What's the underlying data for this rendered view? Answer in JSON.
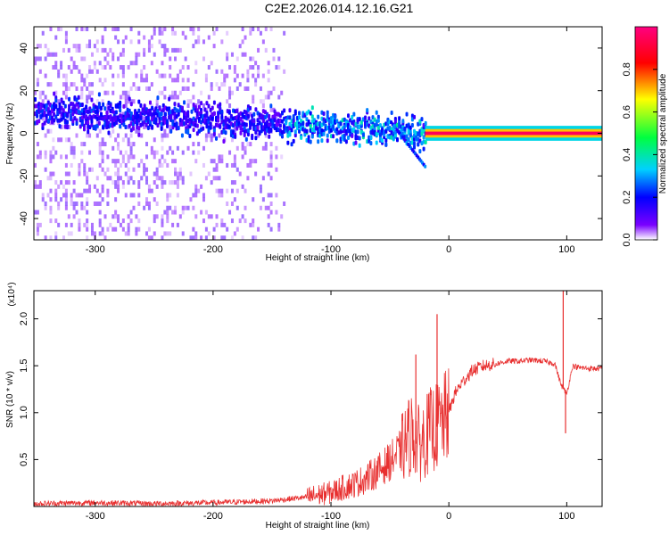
{
  "title": "C2E2.2026.014.12.16.G21",
  "chart_data": [
    {
      "type": "heatmap",
      "xlabel": "Height of straight line (km)",
      "ylabel": "Frequency (Hz)",
      "xlim": [
        -352,
        130
      ],
      "ylim": [
        -50,
        50
      ],
      "xticks": [
        -300,
        -200,
        -100,
        0,
        100
      ],
      "yticks": [
        -40,
        -20,
        0,
        20,
        40
      ],
      "colorbar": {
        "label": "Normalized spectral amplitude",
        "range": [
          0,
          1
        ],
        "ticks": [
          "0.0",
          "0.2",
          "0.4",
          "0.6",
          "0.8"
        ],
        "colormap": [
          "#ffffff",
          "#7a00ff",
          "#0000ff",
          "#00d0ff",
          "#00ff40",
          "#ffff00",
          "#ff0000",
          "#ff0080"
        ]
      },
      "features": [
        {
          "x_range": [
            -352,
            -140
          ],
          "y_range": [
            -50,
            50
          ],
          "amplitude": 0.08,
          "note_value": "broadband"
        },
        {
          "x_range": [
            -352,
            -20
          ],
          "center_hz_start": 10,
          "center_hz_end": 0,
          "amplitude": 0.3
        },
        {
          "x_range": [
            -20,
            130
          ],
          "center_hz": 0,
          "amplitude": 0.95
        }
      ]
    },
    {
      "type": "line",
      "xlabel": "Height of straight line (km)",
      "ylabel": "SNR (10 * v/v)",
      "y_multiplier": "(x10⁴)",
      "xlim": [
        -352,
        130
      ],
      "ylim": [
        0,
        2.3
      ],
      "xticks": [
        -300,
        -200,
        -100,
        0,
        100
      ],
      "yticks": [
        "0.5",
        "1.0",
        "1.5",
        "2.0"
      ],
      "color": "#e83030",
      "series": [
        {
          "x": [
            -352,
            -300,
            -250,
            -200,
            -150,
            -120,
            -100,
            -90,
            -80,
            -70,
            -60,
            -50,
            -40,
            -35,
            -30,
            -25,
            -20,
            -15,
            -10,
            -5,
            0,
            5,
            10,
            20,
            30,
            40,
            50,
            60,
            70,
            80,
            90,
            95,
            100,
            105,
            110,
            120,
            130
          ],
          "y": [
            0.03,
            0.04,
            0.03,
            0.04,
            0.06,
            0.1,
            0.15,
            0.2,
            0.24,
            0.3,
            0.38,
            0.48,
            0.6,
            0.72,
            0.8,
            0.65,
            0.75,
            0.82,
            0.85,
            0.9,
            1.0,
            1.2,
            1.3,
            1.45,
            1.5,
            1.52,
            1.55,
            1.55,
            1.56,
            1.55,
            1.52,
            1.3,
            1.2,
            1.5,
            1.48,
            1.47,
            1.47
          ]
        }
      ],
      "spikes": [
        {
          "x": -28,
          "y": 1.62
        },
        {
          "x": -10,
          "y": 2.05
        },
        {
          "x": 97,
          "y": 2.3
        },
        {
          "x": 99,
          "y": 0.78
        }
      ]
    }
  ]
}
